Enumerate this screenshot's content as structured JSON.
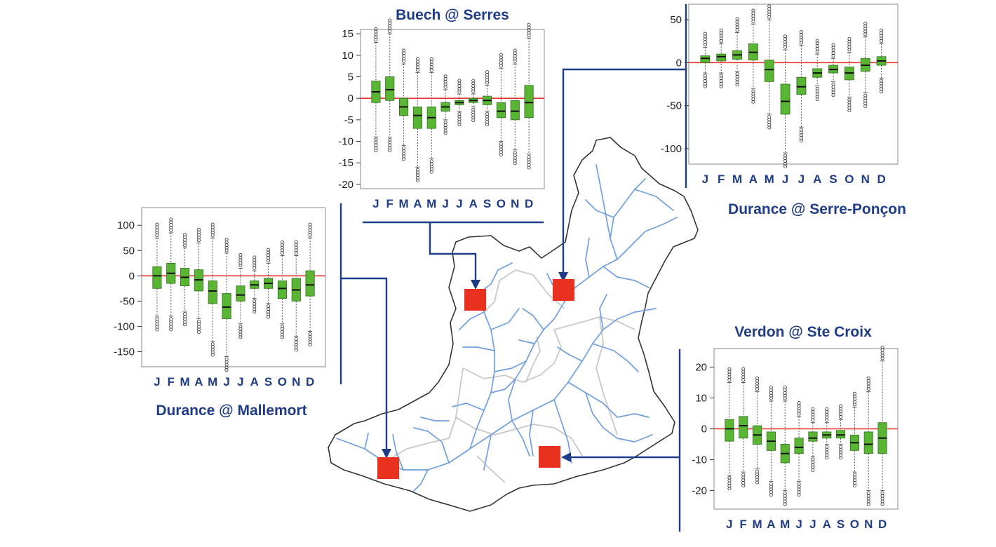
{
  "colors": {
    "title": "#1f3c88",
    "box_fill": "#5ab534",
    "box_edge": "#2d6e1e",
    "zero_line": "#e8332b",
    "river": "#6f9fe0",
    "subbasin": "#c8c8c8",
    "outline": "#333333",
    "marker": "#e8311f",
    "connector": "#1f3c88"
  },
  "chart_data": [
    {
      "type": "box",
      "title": "Buech @ Serres",
      "categories": [
        "J",
        "F",
        "M",
        "A",
        "M",
        "J",
        "J",
        "A",
        "S",
        "O",
        "N",
        "D"
      ],
      "yticks": [
        15,
        10,
        5,
        0,
        -5,
        -10,
        -15,
        -20
      ],
      "ylim": [
        -21,
        16
      ],
      "zero_line": 0,
      "boxes": [
        {
          "q1": -1,
          "median": 1.5,
          "q3": 4,
          "low": -9,
          "high": 13
        },
        {
          "q1": -0.5,
          "median": 2,
          "q3": 5,
          "low": -9,
          "high": 15
        },
        {
          "q1": -4,
          "median": -2,
          "q3": 0,
          "low": -11,
          "high": 8
        },
        {
          "q1": -7,
          "median": -4,
          "q3": -2,
          "low": -16,
          "high": 6
        },
        {
          "q1": -7,
          "median": -4.5,
          "q3": -2,
          "low": -14,
          "high": 6
        },
        {
          "q1": -3,
          "median": -2,
          "q3": -1,
          "low": -5,
          "high": 2
        },
        {
          "q1": -1.5,
          "median": -1,
          "q3": -0.5,
          "low": -3,
          "high": 1
        },
        {
          "q1": -1,
          "median": -0.5,
          "q3": 0,
          "low": -2,
          "high": 1
        },
        {
          "q1": -1.5,
          "median": -0.5,
          "q3": 0.5,
          "low": -3,
          "high": 3
        },
        {
          "q1": -4.5,
          "median": -3,
          "q3": -1,
          "low": -10,
          "high": 7
        },
        {
          "q1": -5,
          "median": -3,
          "q3": -0.5,
          "low": -12,
          "high": 8
        },
        {
          "q1": -4.5,
          "median": -1,
          "q3": 3,
          "low": -13,
          "high": 14
        }
      ]
    },
    {
      "type": "box",
      "title": "Durance @ Serre-Ponçon",
      "categories": [
        "J",
        "F",
        "M",
        "A",
        "M",
        "J",
        "J",
        "A",
        "S",
        "O",
        "N",
        "D"
      ],
      "yticks": [
        50,
        0,
        -50,
        -100
      ],
      "ylim": [
        -118,
        68
      ],
      "zero_line": 0,
      "boxes": [
        {
          "q1": 0,
          "median": 5,
          "q3": 8,
          "low": -12,
          "high": 18
        },
        {
          "q1": 2,
          "median": 7,
          "q3": 10,
          "low": -12,
          "high": 22
        },
        {
          "q1": 4,
          "median": 9,
          "q3": 14,
          "low": -10,
          "high": 35
        },
        {
          "q1": 3,
          "median": 12,
          "q3": 22,
          "low": -30,
          "high": 45
        },
        {
          "q1": -22,
          "median": -8,
          "q3": 3,
          "low": -60,
          "high": 50
        },
        {
          "q1": -60,
          "median": -45,
          "q3": -25,
          "low": -105,
          "high": 15
        },
        {
          "q1": -37,
          "median": -28,
          "q3": -17,
          "low": -75,
          "high": 20
        },
        {
          "q1": -17,
          "median": -12,
          "q3": -7,
          "low": -27,
          "high": 10
        },
        {
          "q1": -12,
          "median": -8,
          "q3": -3,
          "low": -22,
          "high": 5
        },
        {
          "q1": -20,
          "median": -12,
          "q3": -5,
          "low": -40,
          "high": 12
        },
        {
          "q1": -10,
          "median": -3,
          "q3": 5,
          "low": -35,
          "high": 30
        },
        {
          "q1": -3,
          "median": 2,
          "q3": 7,
          "low": -18,
          "high": 22
        }
      ]
    },
    {
      "type": "box",
      "title": "Durance @ Mallemort",
      "categories": [
        "J",
        "F",
        "M",
        "A",
        "M",
        "J",
        "J",
        "A",
        "S",
        "O",
        "N",
        "D"
      ],
      "yticks": [
        100,
        50,
        0,
        -50,
        -100,
        -150
      ],
      "ylim": [
        -180,
        135
      ],
      "zero_line": 0,
      "boxes": [
        {
          "q1": -25,
          "median": 0,
          "q3": 18,
          "low": -80,
          "high": 75
        },
        {
          "q1": -15,
          "median": 5,
          "q3": 25,
          "low": -80,
          "high": 85
        },
        {
          "q1": -20,
          "median": -3,
          "q3": 15,
          "low": -70,
          "high": 55
        },
        {
          "q1": -30,
          "median": -8,
          "q3": 12,
          "low": -85,
          "high": 65
        },
        {
          "q1": -55,
          "median": -30,
          "q3": -10,
          "low": -130,
          "high": 75
        },
        {
          "q1": -85,
          "median": -62,
          "q3": -35,
          "low": -160,
          "high": 45
        },
        {
          "q1": -50,
          "median": -38,
          "q3": -20,
          "low": -95,
          "high": 15
        },
        {
          "q1": -25,
          "median": -18,
          "q3": -10,
          "low": -45,
          "high": 10
        },
        {
          "q1": -25,
          "median": -15,
          "q3": -5,
          "low": -55,
          "high": 25
        },
        {
          "q1": -45,
          "median": -25,
          "q3": -10,
          "low": -95,
          "high": 40
        },
        {
          "q1": -50,
          "median": -28,
          "q3": -5,
          "low": -120,
          "high": 40
        },
        {
          "q1": -40,
          "median": -18,
          "q3": 10,
          "low": -110,
          "high": 75
        }
      ]
    },
    {
      "type": "box",
      "title": "Verdon @ Ste Croix",
      "categories": [
        "J",
        "F",
        "M",
        "A",
        "M",
        "J",
        "J",
        "A",
        "S",
        "O",
        "N",
        "D"
      ],
      "yticks": [
        20,
        10,
        0,
        -10,
        -20
      ],
      "ylim": [
        -26,
        26
      ],
      "zero_line": 0,
      "boxes": [
        {
          "q1": -4,
          "median": 0,
          "q3": 3,
          "low": -15,
          "high": 15
        },
        {
          "q1": -3,
          "median": 1,
          "q3": 4,
          "low": -14,
          "high": 15
        },
        {
          "q1": -5,
          "median": -2,
          "q3": 1,
          "low": -13,
          "high": 12
        },
        {
          "q1": -7,
          "median": -4,
          "q3": -1,
          "low": -17,
          "high": 9
        },
        {
          "q1": -11,
          "median": -8,
          "q3": -5,
          "low": -20,
          "high": 9
        },
        {
          "q1": -8,
          "median": -6,
          "q3": -3,
          "low": -17,
          "high": 4
        },
        {
          "q1": -4,
          "median": -3,
          "q3": -1,
          "low": -9,
          "high": 2
        },
        {
          "q1": -3,
          "median": -2,
          "q3": -1,
          "low": -5,
          "high": 2
        },
        {
          "q1": -3,
          "median": -2,
          "q3": -0.5,
          "low": -5,
          "high": 3
        },
        {
          "q1": -7,
          "median": -4.5,
          "q3": -2,
          "low": -14,
          "high": 7
        },
        {
          "q1": -8,
          "median": -5,
          "q3": -1,
          "low": -20,
          "high": 12
        },
        {
          "q1": -8,
          "median": -3,
          "q3": 2,
          "low": -20,
          "high": 22
        }
      ]
    }
  ]
}
